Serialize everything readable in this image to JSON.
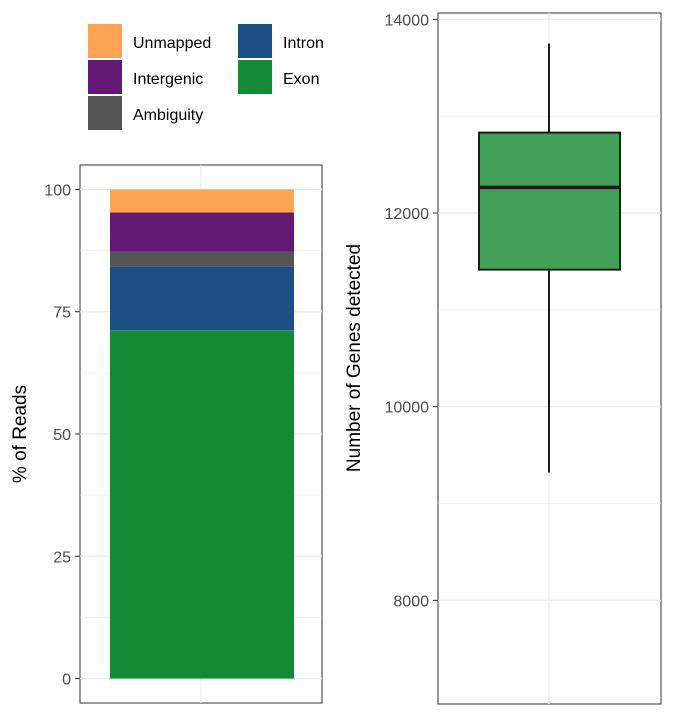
{
  "chart_data": [
    {
      "type": "bar",
      "stacked": true,
      "ylabel": "% of Reads",
      "xlabel": "",
      "ylim": [
        -5,
        105
      ],
      "yticks": [
        "0",
        "25",
        "50",
        "75",
        "100"
      ],
      "grid": true,
      "legend_position": "top",
      "series": [
        {
          "name": "Exon",
          "value": 71.2,
          "color": "#138a36"
        },
        {
          "name": "Intron",
          "value": 13.1,
          "color": "#1b4f86"
        },
        {
          "name": "Ambiguity",
          "value": 3.0,
          "color": "#555555"
        },
        {
          "name": "Intergenic",
          "value": 8.0,
          "color": "#641a74"
        },
        {
          "name": "Unmapped",
          "value": 4.7,
          "color": "#fda354"
        }
      ],
      "legend_order": [
        "Unmapped",
        "Intron",
        "Intergenic",
        "Exon",
        "Ambiguity"
      ]
    },
    {
      "type": "box",
      "ylabel": "Number of Genes detected",
      "xlabel": "",
      "ylim": [
        6930,
        14065
      ],
      "yticks": [
        "8000",
        "10000",
        "12000",
        "14000"
      ],
      "grid": true,
      "box": {
        "whisker_low": 9320,
        "q1": 11415,
        "median": 12265,
        "q3": 12830,
        "whisker_high": 13750
      },
      "fill": "#2e9647"
    }
  ]
}
